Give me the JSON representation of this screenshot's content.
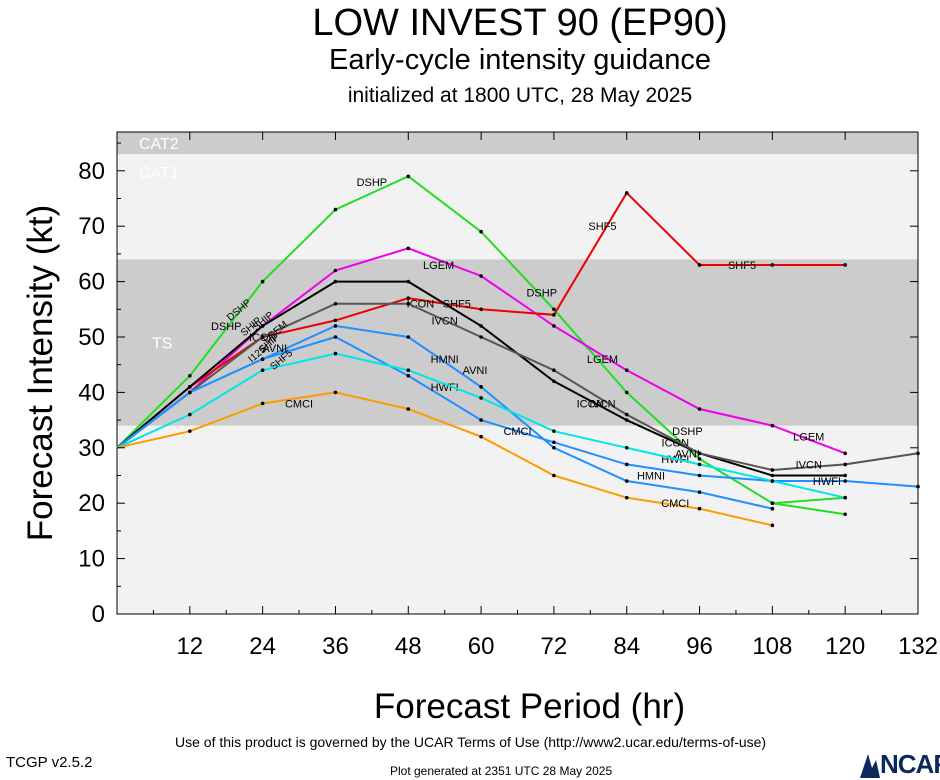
{
  "title": "LOW INVEST 90 (EP90)",
  "subtitle": "Early-cycle intensity guidance",
  "init_line": "initialized at 1800 UTC, 28 May 2025",
  "footer": {
    "terms": "Use of this product is governed by the UCAR Terms of Use (http://www2.ucar.edu/terms-of-use)",
    "version": "TCGP v2.5.2",
    "generated": "Plot generated at 2351 UTC   28 May 2025",
    "logo_text": "NCAR"
  },
  "colors": {
    "plot_background": "#f2f2f2",
    "band_shaded": "#cccccc",
    "band_label": "#ffffff"
  },
  "chart_data": {
    "type": "line",
    "xlabel": "Forecast Period (hr)",
    "ylabel": "Forecast Intensity (kt)",
    "xlim": [
      0,
      132
    ],
    "ylim": [
      0,
      87
    ],
    "xticks": [
      12,
      24,
      36,
      48,
      60,
      72,
      84,
      96,
      108,
      120,
      132
    ],
    "yticks": [
      0,
      10,
      20,
      30,
      40,
      50,
      60,
      70,
      80
    ],
    "bands": [
      {
        "label": "TS",
        "from": 34,
        "to": 64,
        "shaded": true
      },
      {
        "label": "CAT1",
        "from": 64,
        "to": 83,
        "shaded": false
      },
      {
        "label": "CAT2",
        "from": 83,
        "to": 87,
        "shaded": true
      }
    ],
    "series": [
      {
        "name": "DSHP",
        "color": "#22dd22",
        "points": [
          [
            0,
            30
          ],
          [
            12,
            43
          ],
          [
            24,
            60
          ],
          [
            36,
            73
          ],
          [
            48,
            79
          ],
          [
            60,
            69
          ],
          [
            72,
            55
          ],
          [
            84,
            40
          ],
          [
            96,
            28
          ],
          [
            108,
            20
          ],
          [
            120,
            21
          ]
        ],
        "labels": [
          [
            18,
            52
          ],
          [
            42,
            78
          ],
          [
            70,
            58
          ],
          [
            94,
            33
          ]
        ]
      },
      {
        "name": "LGEM",
        "color": "#ee00ee",
        "points": [
          [
            0,
            30
          ],
          [
            12,
            40
          ],
          [
            24,
            52
          ],
          [
            36,
            62
          ],
          [
            48,
            66
          ],
          [
            60,
            61
          ],
          [
            72,
            52
          ],
          [
            84,
            44
          ],
          [
            96,
            37
          ],
          [
            108,
            34
          ],
          [
            120,
            29
          ]
        ],
        "labels": [
          [
            53,
            63
          ],
          [
            80,
            46
          ],
          [
            114,
            32
          ]
        ]
      },
      {
        "name": "SHF5",
        "color": "#ee0000",
        "points": [
          [
            0,
            30
          ],
          [
            12,
            41
          ],
          [
            24,
            50
          ],
          [
            36,
            53
          ],
          [
            48,
            57
          ],
          [
            60,
            55
          ],
          [
            72,
            54
          ],
          [
            84,
            76
          ],
          [
            96,
            63
          ],
          [
            108,
            63
          ],
          [
            120,
            63
          ]
        ],
        "labels": [
          [
            56,
            56
          ],
          [
            80,
            70
          ],
          [
            103,
            63
          ]
        ]
      },
      {
        "name": "ICON",
        "color": "#000000",
        "points": [
          [
            0,
            30
          ],
          [
            12,
            41
          ],
          [
            24,
            52
          ],
          [
            36,
            60
          ],
          [
            48,
            60
          ],
          [
            60,
            52
          ],
          [
            72,
            42
          ],
          [
            84,
            35
          ],
          [
            96,
            29
          ],
          [
            108,
            25
          ],
          [
            120,
            25
          ]
        ],
        "labels": [
          [
            24,
            50
          ],
          [
            50,
            56
          ],
          [
            78,
            38
          ],
          [
            92,
            31
          ]
        ]
      },
      {
        "name": "IVCN",
        "color": "#555555",
        "points": [
          [
            0,
            30
          ],
          [
            12,
            40
          ],
          [
            24,
            50
          ],
          [
            36,
            56
          ],
          [
            48,
            56
          ],
          [
            60,
            50
          ],
          [
            72,
            44
          ],
          [
            84,
            36
          ],
          [
            96,
            29
          ],
          [
            108,
            26
          ],
          [
            120,
            27
          ],
          [
            132,
            29
          ]
        ],
        "labels": [
          [
            54,
            53
          ],
          [
            80,
            38
          ],
          [
            114,
            27
          ]
        ]
      },
      {
        "name": "HMNI",
        "color": "#1e90ff",
        "points": [
          [
            0,
            30
          ],
          [
            12,
            40
          ],
          [
            24,
            46
          ],
          [
            36,
            52
          ],
          [
            48,
            50
          ],
          [
            60,
            41
          ],
          [
            72,
            30
          ],
          [
            84,
            24
          ],
          [
            96,
            22
          ],
          [
            108,
            19
          ]
        ],
        "labels": [
          [
            54,
            46
          ],
          [
            88,
            25
          ]
        ]
      },
      {
        "name": "HWFI",
        "color": "#1e90ff",
        "points": [
          [
            0,
            30
          ],
          [
            12,
            40
          ],
          [
            24,
            46
          ],
          [
            36,
            50
          ],
          [
            48,
            43
          ],
          [
            60,
            35
          ],
          [
            72,
            31
          ],
          [
            84,
            27
          ],
          [
            96,
            25
          ],
          [
            108,
            24
          ],
          [
            120,
            24
          ],
          [
            132,
            23
          ]
        ],
        "labels": [
          [
            54,
            41
          ],
          [
            92,
            28
          ],
          [
            117,
            24
          ]
        ]
      },
      {
        "name": "AVNI",
        "color": "#00e5e5",
        "points": [
          [
            0,
            30
          ],
          [
            12,
            36
          ],
          [
            24,
            44
          ],
          [
            36,
            47
          ],
          [
            48,
            44
          ],
          [
            60,
            39
          ],
          [
            72,
            33
          ],
          [
            84,
            30
          ],
          [
            96,
            27
          ],
          [
            108,
            24
          ],
          [
            120,
            21
          ]
        ],
        "labels": [
          [
            26,
            48
          ],
          [
            59,
            44
          ],
          [
            94,
            29
          ]
        ]
      },
      {
        "name": "CMCI",
        "color": "#ff9900",
        "points": [
          [
            0,
            30
          ],
          [
            12,
            33
          ],
          [
            24,
            38
          ],
          [
            36,
            40
          ],
          [
            48,
            37
          ],
          [
            60,
            32
          ],
          [
            72,
            25
          ],
          [
            84,
            21
          ],
          [
            96,
            19
          ],
          [
            108,
            16
          ]
        ],
        "labels": [
          [
            30,
            38
          ],
          [
            66,
            33
          ],
          [
            92,
            20
          ]
        ]
      },
      {
        "name": "DSHP",
        "color": "#22dd22",
        "points": [
          [
            108,
            20
          ],
          [
            120,
            18
          ]
        ],
        "labels": []
      }
    ],
    "extra_labels": [
      "DSHP",
      "SHIP",
      "SHIP",
      "I125",
      "SHIP",
      "LGEM",
      "SHF5"
    ]
  }
}
